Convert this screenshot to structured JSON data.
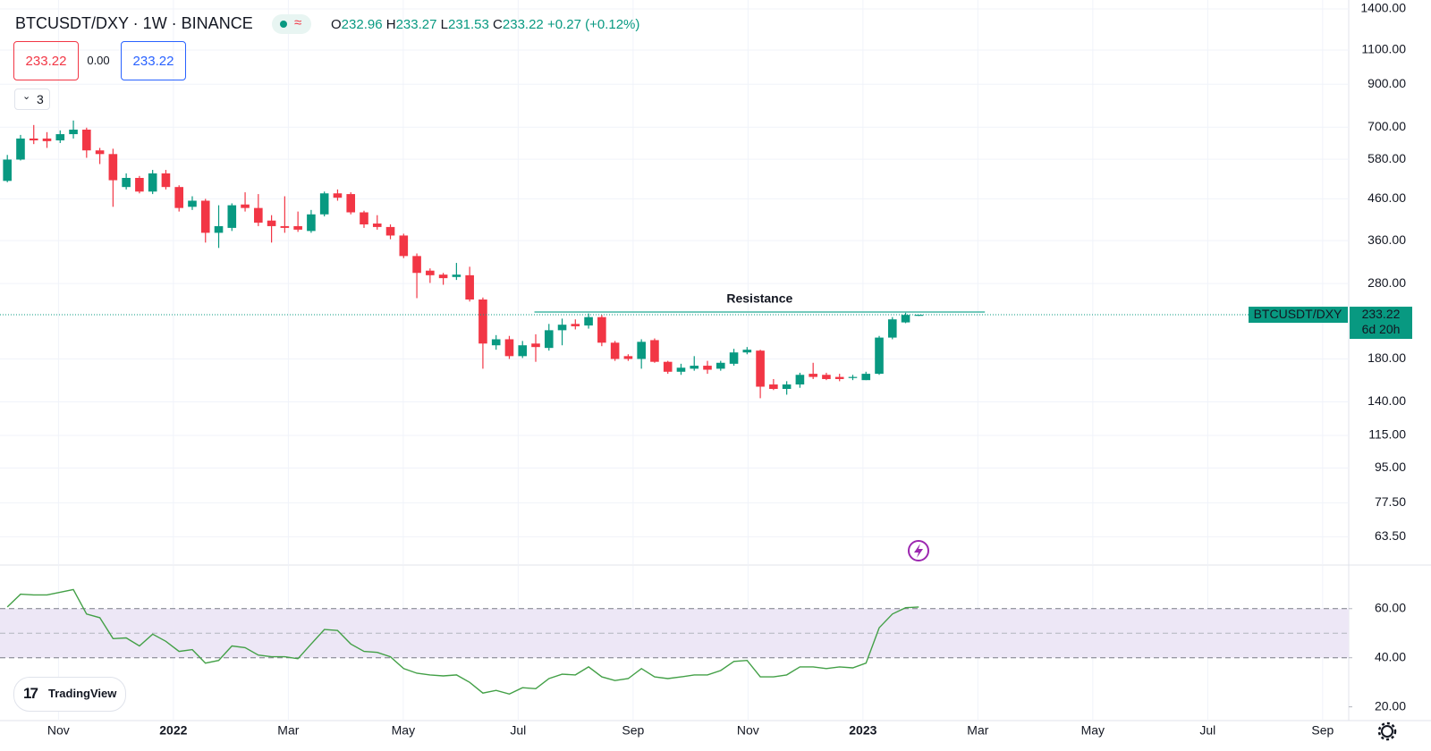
{
  "chart_data": [
    {
      "type": "candlestick",
      "title": "BTCUSDT/DXY · 1W · BINANCE",
      "symbol": "BTCUSDT/DXY",
      "ohlc_letters": [
        "O",
        "H",
        "L",
        "C"
      ],
      "change": {
        "value": 0.27,
        "label": "+0.27"
      },
      "change_pct": {
        "value": 0.12,
        "label": "(+0.12%)"
      },
      "countdown": "6d 20h",
      "up_color": "#089981",
      "down_color": "#f23645",
      "log_scale": true,
      "grid": true,
      "xtick_labels": [
        "Nov",
        "2022",
        "Mar",
        "May",
        "Jul",
        "Sep",
        "Nov",
        "2023",
        "Mar",
        "May",
        "Jul",
        "Sep"
      ],
      "open": [
        511,
        579,
        655,
        655,
        648,
        672,
        690,
        611,
        598,
        493,
        520,
        480,
        534,
        493,
        439,
        455,
        377,
        388,
        445,
        436,
        405,
        392,
        392,
        381,
        420,
        475,
        473,
        425,
        398,
        390,
        371,
        329,
        302,
        295,
        291,
        294,
        255,
        195,
        202,
        183,
        197,
        192,
        213,
        221,
        219,
        230,
        198,
        183,
        180,
        201,
        177,
        167,
        170,
        173,
        170,
        175,
        187,
        189,
        155,
        151,
        155,
        165,
        164,
        162,
        161,
        159,
        165,
        204,
        223,
        232.96
      ],
      "high": [
        595,
        669,
        709,
        680,
        687,
        728,
        698,
        620,
        617,
        534,
        526,
        545,
        545,
        498,
        467,
        460,
        443,
        448,
        478,
        473,
        418,
        467,
        427,
        431,
        480,
        486,
        478,
        429,
        418,
        396,
        375,
        334,
        306,
        298,
        316,
        309,
        258,
        207,
        206,
        200,
        208,
        221,
        228,
        227,
        235,
        233,
        200,
        185,
        202,
        203,
        178,
        175,
        183,
        178,
        178,
        191,
        193,
        190,
        160,
        158,
        166,
        176,
        166,
        165,
        164,
        167,
        206,
        230,
        236,
        233.27
      ],
      "low": [
        507,
        576,
        634,
        620,
        638,
        655,
        585,
        564,
        439,
        486,
        475,
        473,
        486,
        427,
        431,
        356,
        345,
        381,
        427,
        392,
        356,
        377,
        379,
        377,
        415,
        455,
        420,
        388,
        384,
        363,
        325,
        257,
        281,
        278,
        286,
        252,
        170,
        190,
        180,
        181,
        177,
        189,
        195,
        214,
        215,
        194,
        178,
        178,
        170,
        176,
        165,
        164,
        168,
        165,
        168,
        173,
        185,
        143,
        150,
        146,
        152,
        160,
        159,
        158,
        159,
        159,
        164,
        202,
        222,
        231.53
      ],
      "close": [
        579,
        655,
        648,
        645,
        672,
        690,
        611,
        598,
        513,
        520,
        480,
        534,
        493,
        436,
        455,
        377,
        392,
        443,
        436,
        400,
        392,
        388,
        384,
        420,
        475,
        463,
        425,
        396,
        390,
        371,
        329,
        298,
        294,
        289,
        295,
        255,
        197,
        202,
        183,
        195,
        193,
        213,
        220,
        218,
        230,
        198,
        180,
        180,
        199,
        177,
        167,
        171,
        173,
        169,
        176,
        187,
        190,
        153,
        151,
        155,
        164,
        162,
        160,
        160,
        162,
        165,
        204,
        227,
        233,
        233.22
      ],
      "ylim": [
        53.8,
        1475
      ],
      "yticks": [
        {
          "value": 63.5,
          "label": "63.50"
        },
        {
          "value": 77.5,
          "label": "77.50"
        },
        {
          "value": 95,
          "label": "95.00"
        },
        {
          "value": 115,
          "label": "115.00"
        },
        {
          "value": 140,
          "label": "140.00"
        },
        {
          "value": 180,
          "label": "180.00"
        },
        {
          "value": 280,
          "label": "280.00"
        },
        {
          "value": 360,
          "label": "360.00"
        },
        {
          "value": 460,
          "label": "460.00"
        },
        {
          "value": 580,
          "label": "580.00"
        },
        {
          "value": 700,
          "label": "700.00"
        },
        {
          "value": 900,
          "label": "900.00"
        },
        {
          "value": 1100,
          "label": "1100.00"
        },
        {
          "value": 1400,
          "label": "1400.00"
        }
      ],
      "annotations": [
        {
          "text": "Resistance",
          "value": 237,
          "color": "#22ab94"
        }
      ]
    },
    {
      "type": "line",
      "color": "#43a047",
      "band": [
        40,
        60
      ],
      "band_color": "#ede7f6",
      "values": [
        60.7,
        65.9,
        65.6,
        65.6,
        66.7,
        67.8,
        57.8,
        56.3,
        47.8,
        48.1,
        44.8,
        49.6,
        46.7,
        42.6,
        43.3,
        37.8,
        38.9,
        44.8,
        44.1,
        41.1,
        40.4,
        40.4,
        39.6,
        45.6,
        51.5,
        51.1,
        45.6,
        42.6,
        42.2,
        40.4,
        35.6,
        33.7,
        33.0,
        32.6,
        33.0,
        30.0,
        25.6,
        26.7,
        25.2,
        27.8,
        27.4,
        31.5,
        33.3,
        33.0,
        36.3,
        32.2,
        30.7,
        31.5,
        35.6,
        32.2,
        31.5,
        32.2,
        33.0,
        33.0,
        34.8,
        38.5,
        38.9,
        32.2,
        32.2,
        33.0,
        36.3,
        36.3,
        35.6,
        36.3,
        35.9,
        37.8,
        52.2,
        57.8,
        60.4,
        60.7
      ],
      "ylim": [
        14.4,
        77.4
      ],
      "yticks": [
        {
          "value": 20,
          "label": "20.00"
        },
        {
          "value": 40,
          "label": "40.00"
        },
        {
          "value": 60,
          "label": "60.00"
        }
      ]
    }
  ],
  "order_panel": {
    "sell": 233.22,
    "spread": {
      "value": 0,
      "label": "0.00"
    },
    "buy": 233.22
  },
  "indicators_count": 3,
  "branding": "TradingView"
}
